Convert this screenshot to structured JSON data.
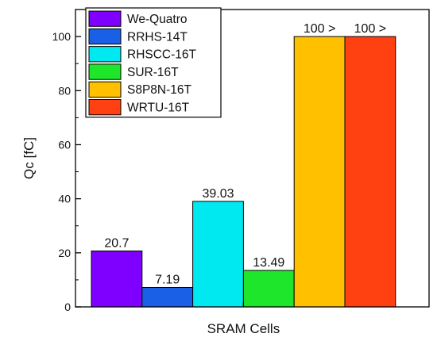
{
  "chart_data": {
    "type": "bar",
    "xlabel": "SRAM Cells",
    "ylabel": "Qc [fC]",
    "ylim": [
      0,
      110
    ],
    "yticks": [
      0,
      20,
      40,
      60,
      80,
      100
    ],
    "grid": false,
    "legend_position": "top-left",
    "series": [
      {
        "name": "We-Quatro",
        "value": 20.7,
        "label": "20.7",
        "color": "#7f00ff"
      },
      {
        "name": "RRHS-14T",
        "value": 7.19,
        "label": "7.19",
        "color": "#1a60e6"
      },
      {
        "name": "RHSCC-16T",
        "value": 39.03,
        "label": "39.03",
        "color": "#00e8f0"
      },
      {
        "name": "SUR-16T",
        "value": 13.49,
        "label": "13.49",
        "color": "#1ee62a"
      },
      {
        "name": "S8P8N-16T",
        "value": 100,
        "label": "100 >",
        "color": "#ffc000"
      },
      {
        "name": "WRTU-16T",
        "value": 100,
        "label": "100 >",
        "color": "#ff4010"
      }
    ]
  }
}
